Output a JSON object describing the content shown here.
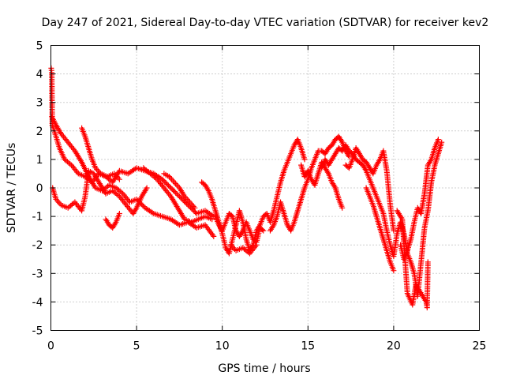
{
  "chart_data": {
    "type": "scatter",
    "title": "Day 247 of 2021, Sidereal Day-to-day VTEC variation (SDTVAR) for receiver kev2",
    "xlabel": "GPS time / hours",
    "ylabel": "SDTVAR / TECUs",
    "xlim": [
      0,
      25
    ],
    "ylim": [
      -5,
      5
    ],
    "xticks": [
      0,
      5,
      10,
      15,
      20,
      25
    ],
    "yticks": [
      -5,
      -4,
      -3,
      -2,
      -1,
      0,
      1,
      2,
      3,
      4,
      5
    ],
    "grid": true,
    "marker": "+",
    "color": "#ff0000",
    "tracks": [
      {
        "name": "track-a",
        "points": [
          [
            0.02,
            4.2
          ],
          [
            0.05,
            4.05
          ],
          [
            0.08,
            2.2
          ],
          [
            0.2,
            2.0
          ],
          [
            0.5,
            1.4
          ],
          [
            0.8,
            1.0
          ],
          [
            1.2,
            0.8
          ],
          [
            1.6,
            0.5
          ],
          [
            2.0,
            0.4
          ],
          [
            2.4,
            0.2
          ],
          [
            2.8,
            0.5
          ],
          [
            3.2,
            0.4
          ],
          [
            3.6,
            0.2
          ],
          [
            4.0,
            0.6
          ],
          [
            4.5,
            0.5
          ],
          [
            5.0,
            0.7
          ],
          [
            5.5,
            0.6
          ],
          [
            6.0,
            0.5
          ],
          [
            6.5,
            0.3
          ],
          [
            7.0,
            0.0
          ],
          [
            7.5,
            -0.3
          ],
          [
            8.0,
            -0.6
          ],
          [
            8.5,
            -0.9
          ],
          [
            9.0,
            -0.8
          ],
          [
            9.5,
            -1.0
          ]
        ]
      },
      {
        "name": "track-b",
        "points": [
          [
            0.05,
            2.5
          ],
          [
            0.3,
            2.2
          ],
          [
            0.6,
            1.9
          ],
          [
            1.0,
            1.6
          ],
          [
            1.4,
            1.3
          ],
          [
            1.8,
            0.9
          ],
          [
            2.2,
            0.4
          ],
          [
            2.6,
            0.0
          ],
          [
            3.0,
            -0.1
          ],
          [
            3.4,
            0.1
          ],
          [
            3.8,
            0.0
          ],
          [
            4.2,
            -0.2
          ],
          [
            4.6,
            -0.5
          ],
          [
            5.0,
            -0.4
          ],
          [
            5.5,
            -0.7
          ],
          [
            6.0,
            -0.9
          ],
          [
            6.5,
            -1.0
          ],
          [
            7.0,
            -1.1
          ],
          [
            7.5,
            -1.3
          ],
          [
            8.0,
            -1.2
          ],
          [
            8.5,
            -1.4
          ],
          [
            9.0,
            -1.3
          ],
          [
            9.5,
            -1.7
          ]
        ]
      },
      {
        "name": "track-c",
        "points": [
          [
            0.1,
            0.0
          ],
          [
            0.3,
            -0.4
          ],
          [
            0.6,
            -0.6
          ],
          [
            1.0,
            -0.7
          ],
          [
            1.4,
            -0.5
          ],
          [
            1.8,
            -0.8
          ],
          [
            2.0,
            -0.3
          ],
          [
            2.2,
            0.6
          ],
          [
            2.5,
            0.5
          ],
          [
            2.8,
            0.2
          ],
          [
            3.2,
            -0.2
          ],
          [
            3.6,
            -0.1
          ],
          [
            4.0,
            -0.3
          ],
          [
            4.4,
            -0.6
          ],
          [
            4.8,
            -0.9
          ],
          [
            5.0,
            -0.7
          ],
          [
            5.3,
            -0.3
          ],
          [
            5.6,
            0.0
          ]
        ]
      },
      {
        "name": "track-d",
        "points": [
          [
            1.8,
            2.1
          ],
          [
            2.0,
            1.8
          ],
          [
            2.2,
            1.4
          ],
          [
            2.4,
            1.0
          ],
          [
            2.6,
            0.7
          ],
          [
            2.9,
            0.5
          ],
          [
            3.3,
            0.4
          ],
          [
            3.7,
            0.5
          ],
          [
            4.0,
            0.3
          ]
        ]
      },
      {
        "name": "track-e",
        "points": [
          [
            3.2,
            -1.1
          ],
          [
            3.4,
            -1.3
          ],
          [
            3.6,
            -1.4
          ],
          [
            3.8,
            -1.2
          ],
          [
            4.0,
            -0.9
          ]
        ]
      },
      {
        "name": "track-f",
        "points": [
          [
            5.4,
            0.7
          ],
          [
            5.8,
            0.5
          ],
          [
            6.2,
            0.3
          ],
          [
            6.6,
            0.0
          ],
          [
            7.0,
            -0.3
          ],
          [
            7.4,
            -0.7
          ],
          [
            7.8,
            -1.1
          ],
          [
            8.2,
            -1.2
          ],
          [
            8.6,
            -1.1
          ],
          [
            9.0,
            -1.0
          ],
          [
            9.4,
            -1.1
          ]
        ]
      },
      {
        "name": "track-g",
        "points": [
          [
            6.6,
            0.5
          ],
          [
            6.9,
            0.4
          ],
          [
            7.2,
            0.2
          ],
          [
            7.5,
            0.0
          ],
          [
            7.8,
            -0.3
          ],
          [
            8.1,
            -0.5
          ],
          [
            8.4,
            -0.7
          ]
        ]
      },
      {
        "name": "track-h",
        "points": [
          [
            8.8,
            0.2
          ],
          [
            9.0,
            0.1
          ],
          [
            9.2,
            -0.1
          ],
          [
            9.4,
            -0.4
          ],
          [
            9.6,
            -0.8
          ],
          [
            9.8,
            -1.2
          ],
          [
            10.0,
            -1.6
          ],
          [
            10.2,
            -2.1
          ],
          [
            10.4,
            -2.3
          ],
          [
            10.6,
            -1.8
          ],
          [
            10.8,
            -1.3
          ],
          [
            11.0,
            -0.8
          ],
          [
            11.2,
            -1.2
          ],
          [
            11.4,
            -1.8
          ],
          [
            11.6,
            -2.2
          ],
          [
            11.8,
            -2.0
          ],
          [
            12.0,
            -1.5
          ],
          [
            12.2,
            -1.3
          ],
          [
            12.4,
            -1.0
          ],
          [
            12.6,
            -0.9
          ],
          [
            12.8,
            -1.2
          ],
          [
            13.0,
            -0.8
          ],
          [
            13.2,
            -0.3
          ],
          [
            13.4,
            0.2
          ],
          [
            13.6,
            0.6
          ],
          [
            13.8,
            0.9
          ],
          [
            14.0,
            1.2
          ],
          [
            14.2,
            1.5
          ],
          [
            14.4,
            1.7
          ],
          [
            14.6,
            1.4
          ],
          [
            14.8,
            1.0
          ]
        ]
      },
      {
        "name": "track-i",
        "points": [
          [
            9.6,
            -1.0
          ],
          [
            9.8,
            -1.3
          ],
          [
            10.0,
            -1.5
          ],
          [
            10.2,
            -1.2
          ],
          [
            10.4,
            -0.9
          ],
          [
            10.6,
            -1.0
          ],
          [
            10.8,
            -1.5
          ],
          [
            11.0,
            -1.7
          ],
          [
            11.2,
            -1.5
          ],
          [
            11.4,
            -1.2
          ],
          [
            11.6,
            -1.5
          ],
          [
            11.8,
            -1.8
          ],
          [
            12.0,
            -1.9
          ],
          [
            12.2,
            -1.4
          ],
          [
            12.4,
            -1.5
          ]
        ]
      },
      {
        "name": "track-j",
        "points": [
          [
            10.5,
            -2.0
          ],
          [
            10.8,
            -2.2
          ],
          [
            11.2,
            -2.1
          ],
          [
            11.6,
            -2.3
          ],
          [
            12.0,
            -2.0
          ]
        ]
      },
      {
        "name": "track-k",
        "points": [
          [
            12.8,
            -1.5
          ],
          [
            13.0,
            -1.3
          ],
          [
            13.2,
            -1.0
          ],
          [
            13.4,
            -0.5
          ],
          [
            13.6,
            -0.9
          ],
          [
            13.8,
            -1.3
          ],
          [
            14.0,
            -1.5
          ],
          [
            14.2,
            -1.2
          ],
          [
            14.4,
            -0.8
          ],
          [
            14.6,
            -0.4
          ],
          [
            14.8,
            0.0
          ],
          [
            15.0,
            0.3
          ],
          [
            15.2,
            0.7
          ],
          [
            15.4,
            1.0
          ],
          [
            15.6,
            1.3
          ],
          [
            15.8,
            1.3
          ],
          [
            16.0,
            1.2
          ],
          [
            16.2,
            1.4
          ],
          [
            16.4,
            1.5
          ],
          [
            16.6,
            1.7
          ],
          [
            16.8,
            1.8
          ],
          [
            17.0,
            1.6
          ],
          [
            17.2,
            1.3
          ],
          [
            17.4,
            1.1
          ]
        ]
      },
      {
        "name": "track-l",
        "points": [
          [
            14.6,
            0.8
          ],
          [
            14.8,
            0.4
          ],
          [
            15.0,
            0.6
          ],
          [
            15.2,
            0.3
          ],
          [
            15.4,
            0.1
          ],
          [
            15.6,
            0.5
          ],
          [
            15.8,
            0.9
          ],
          [
            16.0,
            0.7
          ],
          [
            16.2,
            0.5
          ],
          [
            16.4,
            0.2
          ],
          [
            16.6,
            0.0
          ],
          [
            16.8,
            -0.4
          ],
          [
            17.0,
            -0.7
          ]
        ]
      },
      {
        "name": "track-m",
        "points": [
          [
            15.8,
            0.7
          ],
          [
            16.0,
            1.0
          ],
          [
            16.2,
            0.8
          ],
          [
            16.4,
            1.0
          ],
          [
            16.6,
            1.2
          ],
          [
            16.8,
            1.4
          ],
          [
            17.0,
            1.3
          ],
          [
            17.2,
            1.5
          ],
          [
            17.4,
            1.3
          ],
          [
            17.6,
            1.2
          ],
          [
            17.8,
            1.0
          ],
          [
            18.0,
            0.9
          ],
          [
            18.2,
            0.8
          ],
          [
            18.4,
            0.6
          ],
          [
            18.6,
            0.3
          ],
          [
            18.8,
            0.0
          ],
          [
            19.0,
            -0.3
          ],
          [
            19.2,
            -0.6
          ],
          [
            19.4,
            -0.9
          ],
          [
            19.6,
            -1.5
          ],
          [
            19.8,
            -2.0
          ],
          [
            20.0,
            -2.4
          ],
          [
            20.2,
            -1.6
          ],
          [
            20.4,
            -1.2
          ],
          [
            20.6,
            -1.6
          ],
          [
            20.8,
            -2.3
          ],
          [
            21.0,
            -2.6
          ],
          [
            21.2,
            -3.0
          ],
          [
            21.4,
            -3.8
          ],
          [
            21.6,
            -2.6
          ],
          [
            21.8,
            -1.4
          ],
          [
            22.0,
            -0.8
          ],
          [
            22.2,
            0.2
          ],
          [
            22.4,
            0.8
          ],
          [
            22.6,
            1.2
          ],
          [
            22.8,
            1.6
          ]
        ]
      },
      {
        "name": "track-n",
        "points": [
          [
            17.2,
            0.8
          ],
          [
            17.4,
            0.7
          ],
          [
            17.6,
            1.0
          ],
          [
            17.8,
            1.4
          ],
          [
            18.0,
            1.2
          ],
          [
            18.2,
            1.0
          ],
          [
            18.4,
            0.9
          ],
          [
            18.6,
            0.7
          ],
          [
            18.8,
            0.5
          ],
          [
            19.0,
            0.8
          ],
          [
            19.2,
            1.0
          ],
          [
            19.4,
            1.3
          ],
          [
            19.6,
            0.6
          ],
          [
            19.8,
            -0.6
          ],
          [
            20.0,
            -1.5
          ]
        ]
      },
      {
        "name": "track-o",
        "points": [
          [
            18.4,
            0.0
          ],
          [
            18.6,
            -0.3
          ],
          [
            18.8,
            -0.6
          ],
          [
            19.0,
            -1.0
          ],
          [
            19.2,
            -1.4
          ],
          [
            19.4,
            -1.8
          ],
          [
            19.6,
            -2.2
          ],
          [
            19.8,
            -2.6
          ],
          [
            20.0,
            -2.9
          ]
        ]
      },
      {
        "name": "track-p",
        "points": [
          [
            20.4,
            -2.0
          ],
          [
            20.6,
            -2.5
          ],
          [
            20.8,
            -2.2
          ],
          [
            21.0,
            -1.8
          ],
          [
            21.2,
            -1.2
          ],
          [
            21.4,
            -0.7
          ],
          [
            21.6,
            -0.9
          ],
          [
            21.8,
            -0.2
          ],
          [
            22.0,
            0.8
          ],
          [
            22.2,
            1.0
          ],
          [
            22.4,
            1.4
          ],
          [
            22.6,
            1.7
          ]
        ]
      },
      {
        "name": "track-q",
        "points": [
          [
            20.2,
            -0.8
          ],
          [
            20.5,
            -1.1
          ],
          [
            20.8,
            -3.7
          ],
          [
            21.1,
            -4.1
          ],
          [
            21.3,
            -3.4
          ],
          [
            21.9,
            -4.0
          ],
          [
            21.95,
            -4.2
          ],
          [
            22.0,
            -2.6
          ]
        ]
      }
    ]
  }
}
